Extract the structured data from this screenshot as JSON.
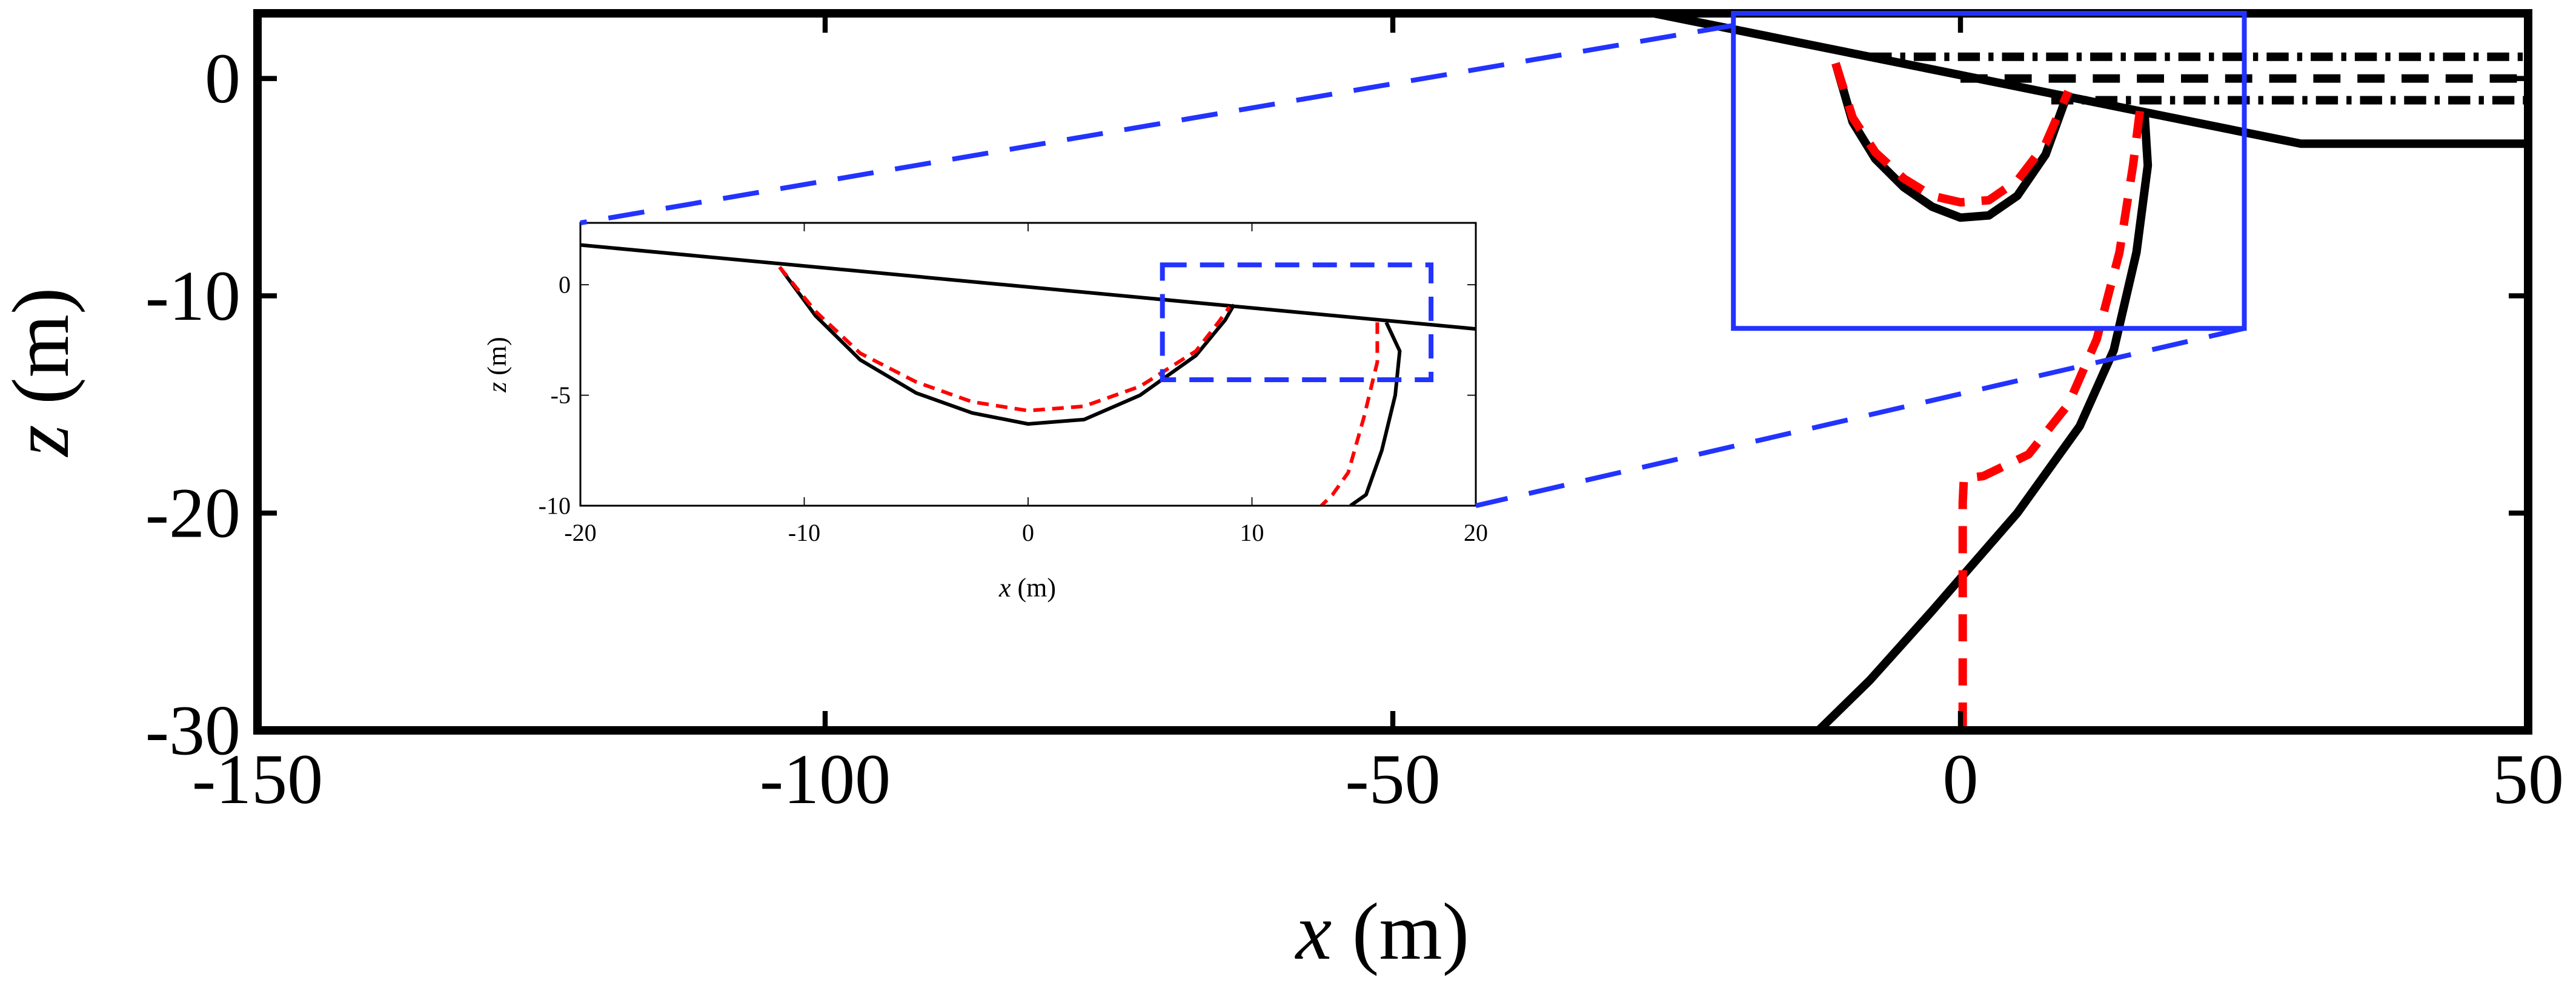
{
  "chart_data": [
    {
      "type": "line",
      "role": "main",
      "xlabel_var": "x",
      "xlabel_unit": " (m)",
      "ylabel_var": "z",
      "ylabel_unit": " (m)",
      "xlim": [
        -150,
        50
      ],
      "ylim": [
        -30,
        3
      ],
      "xticks": [
        -150,
        -100,
        -50,
        0,
        50
      ],
      "yticks": [
        0,
        -10,
        -20,
        -30
      ],
      "xtick_labels": [
        "-150",
        "-100",
        "-50",
        "0",
        "50"
      ],
      "ytick_labels": [
        "0",
        "-10",
        "-20",
        "-30"
      ],
      "grid": false,
      "series": [
        {
          "style": "solid",
          "color": "#000000",
          "points": [
            [
              -150,
              3
            ],
            [
              -27,
              3
            ],
            [
              30,
              -3
            ],
            [
              50,
              -3
            ]
          ]
        },
        {
          "style": "dashdot",
          "color": "#000000",
          "points": [
            [
              -8,
              1
            ],
            [
              50,
              1
            ]
          ]
        },
        {
          "style": "dashed",
          "color": "#000000",
          "points": [
            [
              0,
              0
            ],
            [
              50,
              0
            ]
          ]
        },
        {
          "style": "dashdot",
          "color": "#000000",
          "points": [
            [
              8,
              -1
            ],
            [
              50,
              -1
            ]
          ]
        },
        {
          "style": "solid",
          "color": "#000000",
          "points": [
            [
              -11.0,
              0.7
            ],
            [
              -9.5,
              -2.0
            ],
            [
              -7.5,
              -3.7
            ],
            [
              -5,
              -5.0
            ],
            [
              -2.5,
              -5.9
            ],
            [
              0,
              -6.4
            ],
            [
              2.5,
              -6.3
            ],
            [
              5,
              -5.4
            ],
            [
              7.5,
              -3.5
            ],
            [
              9.5,
              -0.6
            ]
          ]
        },
        {
          "style": "dashed",
          "color": "#ff0000",
          "points": [
            [
              -11.0,
              0.7
            ],
            [
              -9.5,
              -1.8
            ],
            [
              -7.5,
              -3.4
            ],
            [
              -5,
              -4.6
            ],
            [
              -2.5,
              -5.4
            ],
            [
              0,
              -5.7
            ],
            [
              2.5,
              -5.6
            ],
            [
              5,
              -4.7
            ],
            [
              7.5,
              -3.0
            ],
            [
              9.5,
              -0.6
            ]
          ]
        },
        {
          "style": "solid",
          "color": "#000000",
          "points": [
            [
              16.2,
              -1.5
            ],
            [
              16.5,
              -4
            ],
            [
              15.5,
              -8
            ],
            [
              13.5,
              -12.5
            ],
            [
              10.5,
              -16
            ],
            [
              5,
              -20
            ],
            [
              0,
              -23
            ],
            [
              -2.5,
              -24.5
            ],
            [
              -8,
              -27.7
            ],
            [
              -12.5,
              -30
            ]
          ]
        },
        {
          "style": "dashed",
          "color": "#ff0000",
          "points": [
            [
              15.8,
              -1.5
            ],
            [
              15.2,
              -4
            ],
            [
              14.0,
              -8
            ],
            [
              12.0,
              -12
            ],
            [
              9.5,
              -15
            ],
            [
              6,
              -17.3
            ],
            [
              2,
              -18.3
            ],
            [
              0.3,
              -18.4
            ],
            [
              0.2,
              -19.5
            ],
            [
              0.2,
              -23
            ],
            [
              0.2,
              -27
            ],
            [
              0.2,
              -30
            ]
          ]
        }
      ],
      "zoom_box": {
        "x": [
          -20,
          25
        ],
        "y": [
          -11.5,
          3
        ]
      }
    },
    {
      "type": "line",
      "role": "inset",
      "xlabel_var": "x",
      "xlabel_unit": " (m)",
      "ylabel_var": "z",
      "ylabel_unit": " (m)",
      "xlim": [
        -20,
        20
      ],
      "ylim": [
        -10,
        2.8
      ],
      "xticks": [
        -20,
        -10,
        0,
        10,
        20
      ],
      "yticks": [
        0,
        -5,
        -10
      ],
      "xtick_labels": [
        "-20",
        "-10",
        "0",
        "10",
        "20"
      ],
      "ytick_labels": [
        "0",
        "-5",
        "-10"
      ],
      "grid": false,
      "series": [
        {
          "style": "solid",
          "color": "#000000",
          "points": [
            [
              -20,
              1.8
            ],
            [
              20,
              -2.0
            ]
          ]
        },
        {
          "style": "solid",
          "color": "#000000",
          "points": [
            [
              -11.1,
              0.8
            ],
            [
              -9.5,
              -1.4
            ],
            [
              -7.5,
              -3.4
            ],
            [
              -5,
              -4.9
            ],
            [
              -2.5,
              -5.8
            ],
            [
              0,
              -6.3
            ],
            [
              2.5,
              -6.1
            ],
            [
              5,
              -5.0
            ],
            [
              7.5,
              -3.2
            ],
            [
              8.8,
              -1.6
            ],
            [
              9.2,
              -0.9
            ]
          ]
        },
        {
          "style": "dashed",
          "color": "#ff0000",
          "points": [
            [
              -11.1,
              0.8
            ],
            [
              -9.5,
              -1.2
            ],
            [
              -7.5,
              -3.1
            ],
            [
              -5,
              -4.4
            ],
            [
              -2.5,
              -5.3
            ],
            [
              0,
              -5.7
            ],
            [
              2.5,
              -5.5
            ],
            [
              5,
              -4.6
            ],
            [
              7.5,
              -3.0
            ],
            [
              8.5,
              -1.7
            ],
            [
              9.0,
              -1.0
            ]
          ]
        },
        {
          "style": "solid",
          "color": "#000000",
          "points": [
            [
              16.0,
              -1.7
            ],
            [
              16.6,
              -3.0
            ],
            [
              16.4,
              -5
            ],
            [
              15.8,
              -7.5
            ],
            [
              15.1,
              -9.5
            ],
            [
              14.4,
              -10
            ]
          ]
        },
        {
          "style": "dashed",
          "color": "#ff0000",
          "points": [
            [
              15.6,
              -1.7
            ],
            [
              15.6,
              -3.5
            ],
            [
              15.0,
              -6
            ],
            [
              14.3,
              -8.5
            ],
            [
              13.6,
              -9.5
            ],
            [
              13.1,
              -10
            ]
          ]
        }
      ],
      "zoom_box": {
        "x": [
          6,
          18
        ],
        "y": [
          -4.3,
          0.9
        ]
      }
    }
  ]
}
